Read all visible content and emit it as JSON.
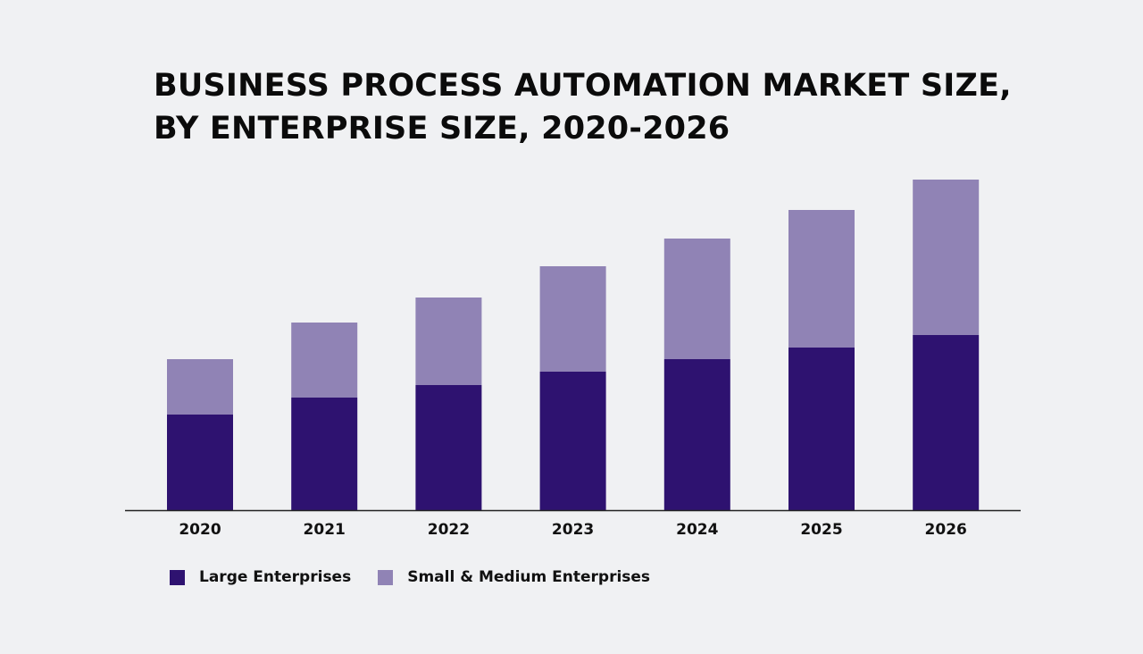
{
  "chart_data": {
    "type": "bar",
    "stacked": true,
    "title_lines": [
      "BUSINESS PROCESS AUTOMATION MARKET SIZE,",
      "BY ENTERPRISE SIZE, 2020-2026"
    ],
    "categories": [
      "2020",
      "2021",
      "2022",
      "2023",
      "2024",
      "2025",
      "2026"
    ],
    "series": [
      {
        "name": "Large Enterprises",
        "color": "#2e1270",
        "values": [
          107,
          126,
          140,
          155,
          169,
          182,
          196
        ]
      },
      {
        "name": "Small & Medium Enterprises",
        "color": "#9083b5",
        "values": [
          62,
          84,
          98,
          118,
          135,
          154,
          174
        ]
      }
    ],
    "ylim": [
      0,
      380
    ],
    "y_axis_shown": false,
    "grid": false,
    "legend_placement": "bottom-left"
  }
}
